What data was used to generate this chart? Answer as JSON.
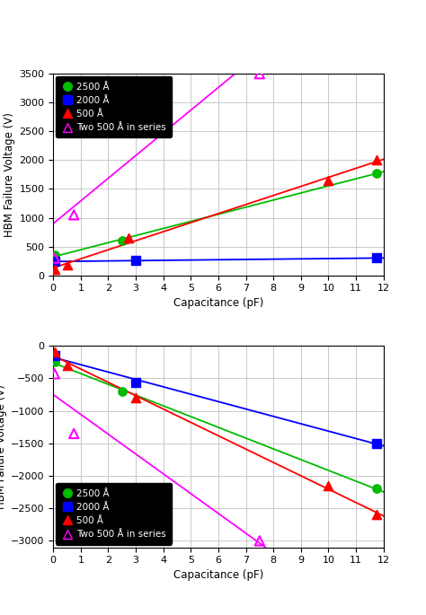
{
  "top_plot": {
    "ylabel": "HBM Failure Voltage (V)",
    "xlabel": "Capacitance (pF)",
    "ylim": [
      0,
      3500
    ],
    "xlim": [
      0,
      12
    ],
    "yticks": [
      0,
      500,
      1000,
      1500,
      2000,
      2500,
      3000,
      3500
    ],
    "xticks": [
      0,
      1,
      2,
      3,
      4,
      5,
      6,
      7,
      8,
      9,
      10,
      11,
      12
    ],
    "series": {
      "green": {
        "label": "2500 Å",
        "color": "#00bb00",
        "marker": "o",
        "filled": true,
        "x": [
          0.05,
          2.5,
          11.75
        ],
        "y": [
          350,
          600,
          1775
        ]
      },
      "blue": {
        "label": "2000 Å",
        "color": "#0000ff",
        "marker": "s",
        "filled": true,
        "x": [
          0.05,
          3.0,
          11.75
        ],
        "y": [
          240,
          255,
          300
        ]
      },
      "red": {
        "label": "500 Å",
        "color": "#ff0000",
        "marker": "^",
        "filled": true,
        "x": [
          0.05,
          0.5,
          2.75,
          10,
          11.75
        ],
        "y": [
          100,
          185,
          650,
          1650,
          2000
        ]
      },
      "magenta": {
        "label": "Two 500 Å in series",
        "color": "#ff00ff",
        "marker": "^",
        "filled": false,
        "x": [
          0.05,
          0.75,
          2.5,
          7.5
        ],
        "y": [
          300,
          1050,
          3000,
          3500
        ]
      }
    }
  },
  "bottom_plot": {
    "ylabel": "HBM Failure Voltage (V)",
    "xlabel": "Capacitance (pF)",
    "ylim": [
      -3100,
      0
    ],
    "xlim": [
      0,
      12
    ],
    "yticks": [
      -3000,
      -2500,
      -2000,
      -1500,
      -1000,
      -500,
      0
    ],
    "xticks": [
      0,
      1,
      2,
      3,
      4,
      5,
      6,
      7,
      8,
      9,
      10,
      11,
      12
    ],
    "series": {
      "green": {
        "label": "2500 Å",
        "color": "#00bb00",
        "marker": "o",
        "filled": true,
        "x": [
          0.05,
          2.5,
          11.75
        ],
        "y": [
          -250,
          -700,
          -2200
        ]
      },
      "blue": {
        "label": "2000 Å",
        "color": "#0000ff",
        "marker": "s",
        "filled": true,
        "x": [
          0.05,
          3.0,
          11.75
        ],
        "y": [
          -150,
          -560,
          -1500
        ]
      },
      "red": {
        "label": "500 Å",
        "color": "#ff0000",
        "marker": "^",
        "filled": true,
        "x": [
          0.05,
          0.5,
          3.0,
          10,
          11.75
        ],
        "y": [
          -100,
          -300,
          -800,
          -2150,
          -2600
        ]
      },
      "magenta": {
        "label": "Two 500 Å in series",
        "color": "#ff00ff",
        "marker": "^",
        "filled": false,
        "x": [
          0.05,
          0.75,
          7.5
        ],
        "y": [
          -430,
          -1350,
          -3000
        ]
      }
    }
  },
  "legend_bg": "#000000",
  "plot_bg": "#ffffff",
  "grid_color": "#c0c0c0"
}
